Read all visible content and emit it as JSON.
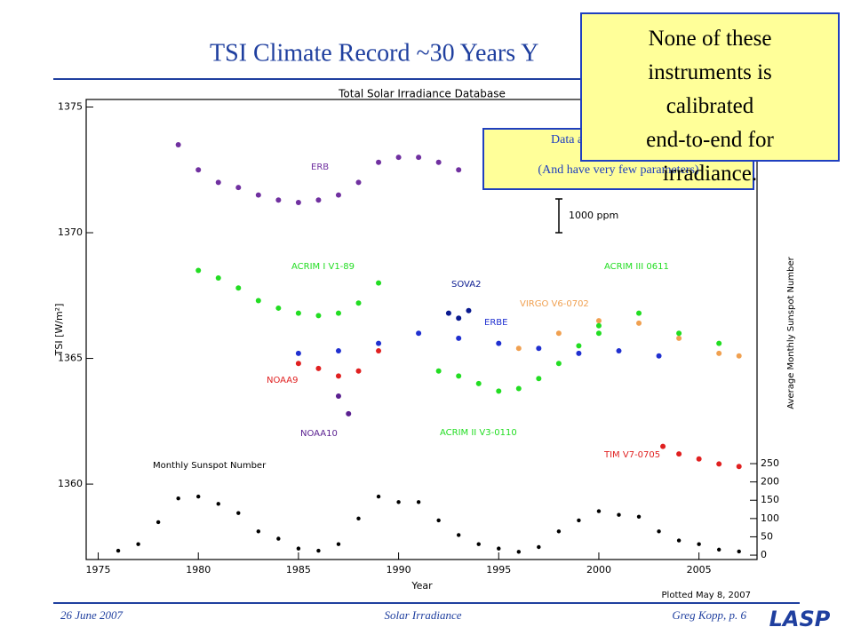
{
  "slide": {
    "title": "TSI Climate Record ~30 Years Y",
    "callout": "None of these instruments is calibrated end-to-end for irradiance.",
    "note_top": "Data are",
    "note_bottom": "(And have very few parameters)",
    "footer_left": "26 June 2007",
    "footer_center": "Solar Irradiance",
    "footer_right": "Greg Kopp, p. 6",
    "logo": "LASP"
  },
  "chart_data": {
    "type": "scatter",
    "title": "Total Solar Irradiance Database",
    "x_label": "Year",
    "y_label": "TSI [W/m²]",
    "y2_label": "Average Monthly Sunspot Number",
    "plotted": "Plotted May  8, 2007",
    "scale_annotation": "1000 ppm",
    "xlim": [
      1974.4,
      2007.9
    ],
    "xticks": [
      1975,
      1980,
      1985,
      1990,
      1995,
      2000,
      2005
    ],
    "ylim": [
      1357,
      1375.3
    ],
    "yticks": [
      1360,
      1365,
      1370,
      1375
    ],
    "y2lim": [
      -12,
      1245
    ],
    "y2ticks": [
      0,
      50,
      100,
      150,
      200,
      250
    ],
    "series": [
      {
        "name": "ERB",
        "color": "#7030a0",
        "x": [
          1979,
          1980,
          1981,
          1982,
          1983,
          1984,
          1985,
          1986,
          1987,
          1988,
          1989,
          1990,
          1991,
          1992,
          1993
        ],
        "values": [
          1373.5,
          1372.5,
          1372,
          1371.8,
          1371.5,
          1371.3,
          1371.2,
          1371.3,
          1371.5,
          1372,
          1372.8,
          1373,
          1373,
          1372.8,
          1372.5
        ]
      },
      {
        "name": "ACRIM I V1-89",
        "color": "#22dd22",
        "x": [
          1980,
          1981,
          1982,
          1983,
          1984,
          1985,
          1986,
          1987,
          1988,
          1989
        ],
        "values": [
          1368.5,
          1368.2,
          1367.8,
          1367.3,
          1367,
          1366.8,
          1366.7,
          1366.8,
          1367.2,
          1368
        ]
      },
      {
        "name": "NOAA9",
        "color": "#e02020",
        "x": [
          1985,
          1986,
          1987,
          1988,
          1989
        ],
        "values": [
          1364.8,
          1364.6,
          1364.3,
          1364.5,
          1365.3
        ]
      },
      {
        "name": "NOAA10",
        "color": "#5a2090",
        "x": [
          1987,
          1987.5
        ],
        "values": [
          1363.5,
          1362.8
        ]
      },
      {
        "name": "SOVA2",
        "color": "#0a1a90",
        "x": [
          1992.5,
          1993,
          1993.5
        ],
        "values": [
          1366.8,
          1366.6,
          1366.9
        ]
      },
      {
        "name": "ERBE",
        "color": "#2030d0",
        "x": [
          1985,
          1987,
          1989,
          1991,
          1993,
          1995,
          1997,
          1999,
          2001,
          2003
        ],
        "values": [
          1365.2,
          1365.3,
          1365.6,
          1366,
          1365.8,
          1365.6,
          1365.4,
          1365.2,
          1365.3,
          1365.1
        ]
      },
      {
        "name": "ACRIM II V3-0110",
        "color": "#22dd22",
        "x": [
          1992,
          1993,
          1994,
          1995,
          1996,
          1997,
          1998,
          1999,
          2000
        ],
        "values": [
          1364.5,
          1364.3,
          1364,
          1363.7,
          1363.8,
          1364.2,
          1364.8,
          1365.5,
          1366
        ]
      },
      {
        "name": "VIRGO V6-0702",
        "color": "#f0a050",
        "x": [
          1996,
          1998,
          2000,
          2002,
          2004,
          2006,
          2007
        ],
        "values": [
          1365.4,
          1366,
          1366.5,
          1366.4,
          1365.8,
          1365.2,
          1365.1
        ]
      },
      {
        "name": "ACRIM III 0611",
        "color": "#22dd22",
        "x": [
          2000,
          2002,
          2004,
          2006
        ],
        "values": [
          1366.3,
          1366.8,
          1366,
          1365.6
        ]
      },
      {
        "name": "TIM V7-0705",
        "color": "#e02020",
        "x": [
          2003.2,
          2004,
          2005,
          2006,
          2007
        ],
        "values": [
          1361.5,
          1361.2,
          1361,
          1360.8,
          1360.7
        ]
      },
      {
        "name": "Monthly Sunspot Number",
        "color": "#000000",
        "axis": "y2",
        "x": [
          1976,
          1977,
          1978,
          1979,
          1980,
          1981,
          1982,
          1983,
          1984,
          1985,
          1986,
          1987,
          1988,
          1989,
          1990,
          1991,
          1992,
          1993,
          1994,
          1995,
          1996,
          1997,
          1998,
          1999,
          2000,
          2001,
          2002,
          2003,
          2004,
          2005,
          2006,
          2007
        ],
        "values": [
          12,
          30,
          90,
          155,
          160,
          140,
          115,
          65,
          45,
          18,
          12,
          30,
          100,
          160,
          145,
          145,
          95,
          55,
          30,
          18,
          9,
          22,
          65,
          95,
          120,
          110,
          105,
          65,
          40,
          30,
          15,
          10
        ]
      }
    ]
  }
}
